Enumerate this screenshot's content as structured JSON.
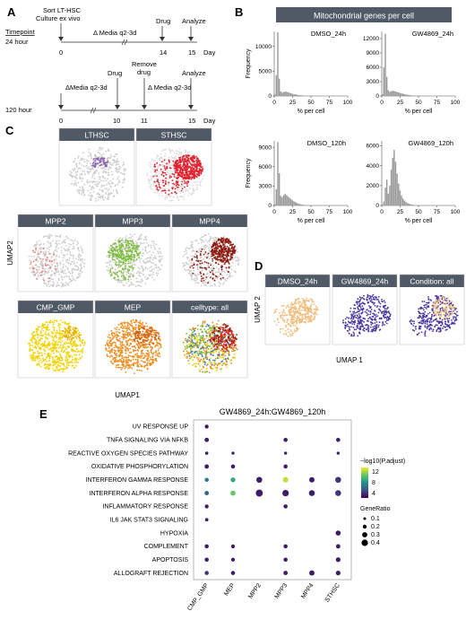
{
  "panels": {
    "A": {
      "letter": "A",
      "sort_line1": "Sort LT-HSC",
      "sort_line2": "Culture ex vivo",
      "timepoint_label": "Timepoint",
      "row1_label": "24 hour",
      "row2_label": "120 hour",
      "row1_media": "Δ Media q2-3d",
      "row1_drug": "Drug",
      "row1_analyze": "Analyze",
      "row1_ticks": [
        "0",
        "14",
        "15"
      ],
      "row1_day": "Day",
      "row2_media1": "ΔMedia q2-3d",
      "row2_drug": "Drug",
      "row2_remove_line1": "Remove",
      "row2_remove_line2": "drug",
      "row2_media2": "Δ Media q2-3d",
      "row2_analyze": "Analyze",
      "row2_ticks": [
        "0",
        "10",
        "11",
        "15"
      ],
      "row2_day": "Day"
    },
    "B": {
      "letter": "B",
      "title": "Mitochondrial genes per cell",
      "ylabel": "Frequency",
      "xlabel": "% per cell",
      "top_yticks": [
        "0",
        "5000",
        "10000"
      ],
      "top_right_yticks": [
        "0",
        "3000",
        "6000",
        "9000",
        "12000"
      ],
      "bottom_left_yticks": [
        "0",
        "3000",
        "6000",
        "9000"
      ],
      "bottom_right_yticks": [
        "0",
        "2000",
        "4000",
        "6000"
      ],
      "xticks": [
        "0",
        "25",
        "50",
        "75",
        "100"
      ]
    },
    "C": {
      "letter": "C",
      "ylabel": "UMAP2",
      "xlabel": "UMAP1",
      "labels": [
        "LTHSC",
        "STHSC",
        "MPP2",
        "MPP3",
        "MPP4",
        "CMP_GMP",
        "MEP",
        "celltype: all"
      ]
    },
    "D": {
      "letter": "D",
      "ylabel": "UMAP 2",
      "xlabel": "UMAP 1",
      "labels": [
        "DMSO_24h",
        "GW4869_24h",
        "Condition: all"
      ]
    },
    "E": {
      "letter": "E",
      "title": "GW4869_24h:GW4869_120h",
      "legend_color_title": "−log10(P.adjust)",
      "legend_color_ticks": [
        "12",
        "8",
        "4"
      ],
      "legend_size_title": "GeneRatio",
      "legend_size_items": [
        "0.1",
        "0.2",
        "0.3",
        "0.4"
      ]
    }
  },
  "chart_data": [
    {
      "type": "bar",
      "title": "DMSO_24h",
      "xlabel": "% per cell",
      "ylabel": "Frequency",
      "xlim": [
        0,
        100
      ],
      "ylim": [
        0,
        13000
      ],
      "bin_width": 2,
      "values": [
        300,
        4200,
        12800,
        3500,
        900,
        700,
        800,
        900,
        850,
        750,
        650,
        550,
        450,
        380,
        320,
        260,
        200,
        160,
        130,
        100,
        80,
        60,
        50,
        40,
        30,
        25,
        20,
        15,
        10,
        8,
        6,
        4,
        3,
        2,
        2,
        1,
        1,
        1,
        0,
        0,
        0,
        0,
        0,
        0,
        0,
        0,
        0,
        0,
        0,
        0
      ]
    },
    {
      "type": "bar",
      "title": "GW4869_24h",
      "xlabel": "% per cell",
      "ylabel": "Frequency",
      "xlim": [
        0,
        100
      ],
      "ylim": [
        0,
        13500
      ],
      "bin_width": 2,
      "values": [
        400,
        6000,
        13000,
        4000,
        1200,
        900,
        1000,
        1100,
        1050,
        950,
        850,
        750,
        650,
        560,
        480,
        400,
        330,
        270,
        210,
        160,
        120,
        90,
        70,
        55,
        40,
        30,
        22,
        16,
        12,
        8,
        6,
        4,
        3,
        2,
        1,
        1,
        0,
        0,
        0,
        0,
        0,
        0,
        0,
        0,
        0,
        0,
        0,
        0,
        0,
        0
      ]
    },
    {
      "type": "bar",
      "title": "DMSO_120h",
      "xlabel": "% per cell",
      "ylabel": "Frequency",
      "xlim": [
        0,
        100
      ],
      "ylim": [
        0,
        10000
      ],
      "bin_width": 2,
      "values": [
        200,
        2500,
        9800,
        5000,
        1500,
        1300,
        1600,
        1800,
        1600,
        1400,
        1200,
        1000,
        800,
        650,
        520,
        400,
        300,
        220,
        160,
        120,
        90,
        70,
        50,
        35,
        25,
        18,
        12,
        8,
        6,
        4,
        3,
        2,
        1,
        1,
        0,
        0,
        0,
        0,
        0,
        0,
        0,
        0,
        0,
        0,
        0,
        0,
        0,
        0,
        0,
        0
      ]
    },
    {
      "type": "bar",
      "title": "GW4869_120h",
      "xlabel": "% per cell",
      "ylabel": "Frequency",
      "xlim": [
        0,
        100
      ],
      "ylim": [
        0,
        6500
      ],
      "bin_width": 2,
      "values": [
        100,
        400,
        1800,
        2600,
        1200,
        2000,
        3600,
        4800,
        5600,
        4400,
        3200,
        2200,
        1500,
        1000,
        700,
        500,
        350,
        250,
        180,
        130,
        90,
        60,
        40,
        30,
        20,
        14,
        10,
        6,
        4,
        3,
        2,
        1,
        1,
        0,
        0,
        0,
        0,
        0,
        0,
        0,
        0,
        0,
        0,
        0,
        0,
        0,
        0,
        0,
        0,
        0
      ]
    },
    {
      "type": "scatter",
      "title": "GW4869_24h:GW4869_120h",
      "categories_x": [
        "CMP_GMP",
        "MEP",
        "MPP2",
        "MPP3",
        "MPP4",
        "STHSC"
      ],
      "categories_y": [
        "UV RESPONSE UP",
        "TNFA SIGNALING VIA NFKB",
        "REACTIVE OXYGEN SPECIES PATHWAY",
        "OXIDATIVE PHOSPHORYLATION",
        "INTERFERON GAMMA RESPONSE",
        "INTERFERON ALPHA RESPONSE",
        "INFLAMMATORY RESPONSE",
        "IL6 JAK STAT3 SIGNALING",
        "HYPOXIA",
        "COMPLEMENT",
        "APOPTOSIS",
        "ALLOGRAFT REJECTION"
      ],
      "color_metric": "−log10(P.adjust)",
      "size_metric": "GeneRatio",
      "color_range": [
        2,
        14
      ],
      "points": [
        {
          "x": "CMP_GMP",
          "y": "UV RESPONSE UP",
          "gr": 0.18,
          "p": 3
        },
        {
          "x": "CMP_GMP",
          "y": "TNFA SIGNALING VIA NFKB",
          "gr": 0.22,
          "p": 3
        },
        {
          "x": "CMP_GMP",
          "y": "REACTIVE OXYGEN SPECIES PATHWAY",
          "gr": 0.12,
          "p": 3
        },
        {
          "x": "CMP_GMP",
          "y": "OXIDATIVE PHOSPHORYLATION",
          "gr": 0.22,
          "p": 3
        },
        {
          "x": "CMP_GMP",
          "y": "INTERFERON GAMMA RESPONSE",
          "gr": 0.2,
          "p": 7
        },
        {
          "x": "CMP_GMP",
          "y": "INTERFERON ALPHA RESPONSE",
          "gr": 0.22,
          "p": 6
        },
        {
          "x": "CMP_GMP",
          "y": "INFLAMMATORY RESPONSE",
          "gr": 0.18,
          "p": 3
        },
        {
          "x": "CMP_GMP",
          "y": "IL6 JAK STAT3 SIGNALING",
          "gr": 0.14,
          "p": 3
        },
        {
          "x": "CMP_GMP",
          "y": "COMPLEMENT",
          "gr": 0.2,
          "p": 3
        },
        {
          "x": "CMP_GMP",
          "y": "APOPTOSIS",
          "gr": 0.2,
          "p": 3
        },
        {
          "x": "CMP_GMP",
          "y": "ALLOGRAFT REJECTION",
          "gr": 0.2,
          "p": 4
        },
        {
          "x": "MEP",
          "y": "REACTIVE OXYGEN SPECIES PATHWAY",
          "gr": 0.1,
          "p": 3
        },
        {
          "x": "MEP",
          "y": "OXIDATIVE PHOSPHORYLATION",
          "gr": 0.2,
          "p": 3
        },
        {
          "x": "MEP",
          "y": "INTERFERON GAMMA RESPONSE",
          "gr": 0.25,
          "p": 9
        },
        {
          "x": "MEP",
          "y": "INTERFERON ALPHA RESPONSE",
          "gr": 0.28,
          "p": 11
        },
        {
          "x": "MEP",
          "y": "COMPLEMENT",
          "gr": 0.18,
          "p": 3
        },
        {
          "x": "MEP",
          "y": "APOPTOSIS",
          "gr": 0.18,
          "p": 3
        },
        {
          "x": "MEP",
          "y": "ALLOGRAFT REJECTION",
          "gr": 0.2,
          "p": 3
        },
        {
          "x": "MPP2",
          "y": "INTERFERON GAMMA RESPONSE",
          "gr": 0.35,
          "p": 3
        },
        {
          "x": "MPP2",
          "y": "INTERFERON ALPHA RESPONSE",
          "gr": 0.45,
          "p": 3
        },
        {
          "x": "MPP3",
          "y": "TNFA SIGNALING VIA NFKB",
          "gr": 0.2,
          "p": 3
        },
        {
          "x": "MPP3",
          "y": "REACTIVE OXYGEN SPECIES PATHWAY",
          "gr": 0.1,
          "p": 3
        },
        {
          "x": "MPP3",
          "y": "OXIDATIVE PHOSPHORYLATION",
          "gr": 0.2,
          "p": 3
        },
        {
          "x": "MPP3",
          "y": "INTERFERON GAMMA RESPONSE",
          "gr": 0.32,
          "p": 13
        },
        {
          "x": "MPP3",
          "y": "INTERFERON ALPHA RESPONSE",
          "gr": 0.4,
          "p": 3
        },
        {
          "x": "MPP3",
          "y": "INFLAMMATORY RESPONSE",
          "gr": 0.2,
          "p": 3
        },
        {
          "x": "MPP3",
          "y": "COMPLEMENT",
          "gr": 0.2,
          "p": 3
        },
        {
          "x": "MPP3",
          "y": "APOPTOSIS",
          "gr": 0.2,
          "p": 3
        },
        {
          "x": "MPP3",
          "y": "ALLOGRAFT REJECTION",
          "gr": 0.22,
          "p": 3
        },
        {
          "x": "MPP4",
          "y": "INTERFERON GAMMA RESPONSE",
          "gr": 0.3,
          "p": 3
        },
        {
          "x": "MPP4",
          "y": "INTERFERON ALPHA RESPONSE",
          "gr": 0.35,
          "p": 3
        },
        {
          "x": "MPP4",
          "y": "ALLOGRAFT REJECTION",
          "gr": 0.3,
          "p": 3
        },
        {
          "x": "STHSC",
          "y": "TNFA SIGNALING VIA NFKB",
          "gr": 0.2,
          "p": 3
        },
        {
          "x": "STHSC",
          "y": "REACTIVE OXYGEN SPECIES PATHWAY",
          "gr": 0.1,
          "p": 3
        },
        {
          "x": "STHSC",
          "y": "INTERFERON GAMMA RESPONSE",
          "gr": 0.35,
          "p": 4
        },
        {
          "x": "STHSC",
          "y": "INTERFERON ALPHA RESPONSE",
          "gr": 0.35,
          "p": 4
        },
        {
          "x": "STHSC",
          "y": "HYPOXIA",
          "gr": 0.28,
          "p": 3
        },
        {
          "x": "STHSC",
          "y": "COMPLEMENT",
          "gr": 0.22,
          "p": 3
        },
        {
          "x": "STHSC",
          "y": "APOPTOSIS",
          "gr": 0.25,
          "p": 3
        },
        {
          "x": "STHSC",
          "y": "ALLOGRAFT REJECTION",
          "gr": 0.25,
          "p": 3
        }
      ]
    }
  ],
  "colors": {
    "header_bg": "#505a66",
    "hist_bar": "#9a9a9a",
    "umap_gray": "#cccccc",
    "lthsc": "#8a5fb0",
    "sthsc": "#e0202c",
    "mpp2": "#e88080",
    "mpp3": "#7cbd3a",
    "mpp4": "#8e1c12",
    "cmp_gmp": "#f2d200",
    "mep": "#ee8a1a",
    "dmso": "#f0bd7c",
    "gw": "#4a35a0"
  }
}
